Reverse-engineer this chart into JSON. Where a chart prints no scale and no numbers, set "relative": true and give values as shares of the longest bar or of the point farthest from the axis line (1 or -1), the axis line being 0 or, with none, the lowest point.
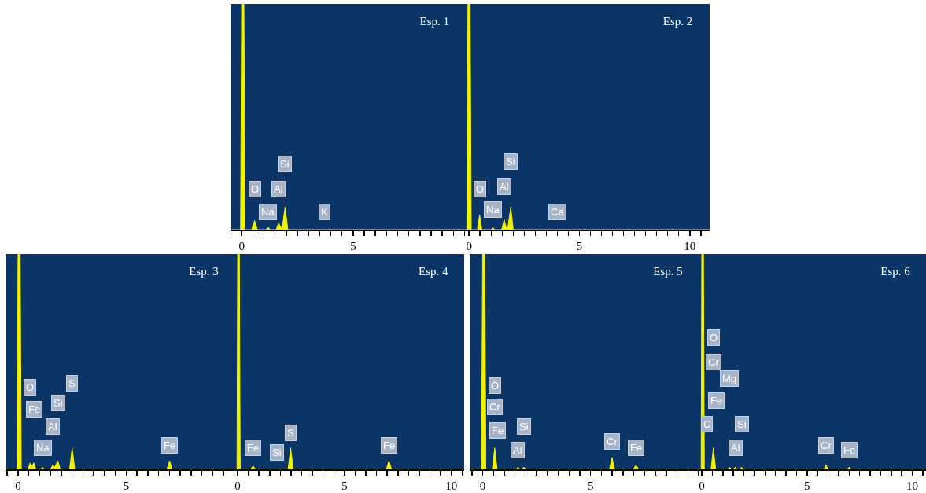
{
  "chart_data": [
    {
      "type": "area",
      "title": "Esp. 1",
      "relative": true,
      "tick_labels": "x",
      "color": "#f2f200",
      "x": [
        -0.5,
        -0.05,
        0,
        0.1,
        0.15,
        0.45,
        0.58,
        0.7,
        1.1,
        1.19,
        1.28,
        1.55,
        1.66,
        1.75,
        1.82,
        1.95,
        2.07,
        10.05
      ],
      "values": [
        0,
        0,
        1,
        1,
        0,
        0,
        0.04,
        0,
        0,
        0.01,
        0,
        0,
        0.03,
        0.01,
        0.01,
        0.1,
        0,
        0
      ],
      "xlim": [
        -0.5,
        10.05
      ],
      "xticks": [
        {
          "value": -0.5,
          "label": null
        },
        0,
        {
          "value": 0.5,
          "label": null
        },
        {
          "value": 1,
          "label": null
        },
        {
          "value": 1.5,
          "label": null
        },
        {
          "value": 2,
          "label": null
        },
        {
          "value": 2.5,
          "label": null
        },
        {
          "value": 3,
          "label": null
        },
        {
          "value": 3.5,
          "label": null
        },
        {
          "value": 4,
          "label": null
        },
        {
          "value": 4.5,
          "label": null
        },
        5,
        {
          "value": 5.5,
          "label": null
        },
        {
          "value": 6,
          "label": null
        },
        {
          "value": 6.5,
          "label": null
        },
        {
          "value": 7,
          "label": null
        },
        {
          "value": 7.5,
          "label": null
        },
        {
          "value": 8,
          "label": null
        },
        {
          "value": 8.5,
          "label": null
        },
        {
          "value": 9,
          "label": null
        },
        {
          "value": 9.5,
          "label": null
        },
        {
          "value": 10,
          "label": null
        }
      ],
      "annotations": [
        {
          "text": "O",
          "x": 0.58,
          "y": 0.18
        },
        {
          "text": "Na",
          "x": 1.19,
          "y": 0.08
        },
        {
          "text": "Al",
          "x": 1.66,
          "y": 0.18
        },
        {
          "text": "Si",
          "x": 1.95,
          "y": 0.29
        },
        {
          "text": "K",
          "x": 3.7,
          "y": 0.08
        }
      ]
    },
    {
      "type": "area",
      "title": "Esp. 2",
      "relative": true,
      "tick_labels": "x",
      "color": "#f2f200",
      "x": [
        -0.15,
        -0.1,
        -0.05,
        0.05,
        0.1,
        0.38,
        0.48,
        0.58,
        1.0,
        1.08,
        1.16,
        1.48,
        1.59,
        1.68,
        1.76,
        1.89,
        2.0,
        10.9
      ],
      "values": [
        0,
        0,
        1,
        1,
        0,
        0,
        0.065,
        0,
        0,
        0.01,
        0,
        0,
        0.045,
        0.01,
        0.01,
        0.1,
        0,
        0
      ],
      "xlim": [
        -0.15,
        10.9
      ],
      "xticks": [
        0,
        {
          "value": 0.5,
          "label": null
        },
        {
          "value": 1,
          "label": null
        },
        {
          "value": 1.5,
          "label": null
        },
        {
          "value": 2,
          "label": null
        },
        {
          "value": 2.5,
          "label": null
        },
        {
          "value": 3,
          "label": null
        },
        {
          "value": 3.5,
          "label": null
        },
        {
          "value": 4,
          "label": null
        },
        {
          "value": 4.5,
          "label": null
        },
        5,
        {
          "value": 5.5,
          "label": null
        },
        {
          "value": 6,
          "label": null
        },
        {
          "value": 6.5,
          "label": null
        },
        {
          "value": 7,
          "label": null
        },
        {
          "value": 7.5,
          "label": null
        },
        {
          "value": 8,
          "label": null
        },
        {
          "value": 8.5,
          "label": null
        },
        {
          "value": 9,
          "label": null
        },
        {
          "value": 9.5,
          "label": null
        },
        10,
        {
          "value": 10.5,
          "label": null
        }
      ],
      "annotations": [
        {
          "text": "O",
          "x": 0.48,
          "y": 0.18
        },
        {
          "text": "Na",
          "x": 1.08,
          "y": 0.09
        },
        {
          "text": "Al",
          "x": 1.59,
          "y": 0.19
        },
        {
          "text": "Si",
          "x": 1.89,
          "y": 0.3
        },
        {
          "text": "Ca",
          "x": 4.02,
          "y": 0.08
        }
      ]
    },
    {
      "type": "area",
      "title": "Esp. 3",
      "relative": true,
      "tick_labels": "x",
      "color": "#f2f200",
      "x": [
        -0.58,
        -0.05,
        0,
        0.1,
        0.15,
        0.45,
        0.56,
        0.64,
        0.73,
        0.82,
        1.05,
        1.13,
        1.21,
        1.5,
        1.6,
        1.7,
        1.84,
        1.95,
        2.38,
        2.5,
        2.62,
        6.88,
        7.0,
        7.12,
        10.0
      ],
      "values": [
        0,
        0,
        1,
        1,
        0,
        0,
        0.03,
        0.015,
        0.03,
        0,
        0,
        0.01,
        0,
        0,
        0.02,
        0.01,
        0.04,
        0,
        0,
        0.1,
        0,
        0,
        0.04,
        0,
        0
      ],
      "xlim": [
        -0.58,
        10.0
      ],
      "xticks": [
        {
          "value": -0.5,
          "label": null
        },
        0,
        {
          "value": 0.5,
          "label": null
        },
        {
          "value": 1,
          "label": null
        },
        {
          "value": 1.5,
          "label": null
        },
        {
          "value": 2,
          "label": null
        },
        {
          "value": 2.5,
          "label": null
        },
        {
          "value": 3,
          "label": null
        },
        {
          "value": 3.5,
          "label": null
        },
        {
          "value": 4,
          "label": null
        },
        {
          "value": 4.5,
          "label": null
        },
        5,
        {
          "value": 5.5,
          "label": null
        },
        {
          "value": 6,
          "label": null
        },
        {
          "value": 6.5,
          "label": null
        },
        {
          "value": 7,
          "label": null
        },
        {
          "value": 7.5,
          "label": null
        },
        {
          "value": 8,
          "label": null
        },
        {
          "value": 8.5,
          "label": null
        },
        {
          "value": 9,
          "label": null
        },
        {
          "value": 9.5,
          "label": null
        },
        {
          "value": 10,
          "label": null
        }
      ],
      "annotations": [
        {
          "text": "O",
          "x": 0.56,
          "y": 0.38
        },
        {
          "text": "Fe",
          "x": 0.73,
          "y": 0.28
        },
        {
          "text": "Na",
          "x": 1.13,
          "y": 0.1
        },
        {
          "text": "Al",
          "x": 1.6,
          "y": 0.2
        },
        {
          "text": "Si",
          "x": 1.84,
          "y": 0.31
        },
        {
          "text": "S",
          "x": 2.5,
          "y": 0.4
        },
        {
          "text": "Fe",
          "x": 7.0,
          "y": 0.11
        }
      ]
    },
    {
      "type": "area",
      "title": "Esp. 4",
      "relative": true,
      "tick_labels": "x",
      "color": "#f2f200",
      "x": [
        -0.15,
        -0.03,
        0,
        0.08,
        0.12,
        0.6,
        0.72,
        0.84,
        2.36,
        2.48,
        2.6,
        6.96,
        7.08,
        7.2,
        10.6
      ],
      "values": [
        0,
        0,
        1,
        1,
        0,
        0,
        0.015,
        0,
        0,
        0.1,
        0,
        0,
        0.04,
        0,
        0
      ],
      "xlim": [
        -0.15,
        10.6
      ],
      "xticks": [
        0,
        {
          "value": 0.5,
          "label": null
        },
        {
          "value": 1,
          "label": null
        },
        {
          "value": 1.5,
          "label": null
        },
        {
          "value": 2,
          "label": null
        },
        {
          "value": 2.5,
          "label": null
        },
        {
          "value": 3,
          "label": null
        },
        {
          "value": 3.5,
          "label": null
        },
        {
          "value": 4,
          "label": null
        },
        {
          "value": 4.5,
          "label": null
        },
        5,
        {
          "value": 5.5,
          "label": null
        },
        {
          "value": 6,
          "label": null
        },
        {
          "value": 6.5,
          "label": null
        },
        {
          "value": 7,
          "label": null
        },
        {
          "value": 7.5,
          "label": null
        },
        {
          "value": 8,
          "label": null
        },
        {
          "value": 8.5,
          "label": null
        },
        {
          "value": 9,
          "label": null
        },
        {
          "value": 9.5,
          "label": null
        },
        10,
        {
          "value": 10.5,
          "label": null
        }
      ],
      "annotations": [
        {
          "text": "Fe",
          "x": 0.72,
          "y": 0.1
        },
        {
          "text": "Si",
          "x": 1.84,
          "y": 0.08
        },
        {
          "text": "S",
          "x": 2.48,
          "y": 0.17
        },
        {
          "text": "Fe",
          "x": 7.08,
          "y": 0.11
        }
      ]
    },
    {
      "type": "area",
      "title": "Esp. 5",
      "relative": true,
      "tick_labels": "x",
      "color": "#f2f200",
      "x": [
        -0.6,
        -0.05,
        0,
        0.1,
        0.15,
        0.45,
        0.56,
        0.67,
        1.55,
        1.64,
        1.73,
        1.82,
        1.91,
        2.0,
        5.87,
        5.99,
        6.11,
        6.98,
        7.1,
        7.22,
        10.0
      ],
      "values": [
        0,
        0,
        1,
        1,
        0,
        0,
        0.1,
        0,
        0,
        0.01,
        0,
        0,
        0.01,
        0,
        0,
        0.055,
        0,
        0,
        0.02,
        0,
        0
      ],
      "xlim": [
        -0.6,
        10.0
      ],
      "xticks": [
        {
          "value": -0.5,
          "label": null
        },
        0,
        {
          "value": 0.5,
          "label": null
        },
        {
          "value": 1,
          "label": null
        },
        {
          "value": 1.5,
          "label": null
        },
        {
          "value": 2,
          "label": null
        },
        {
          "value": 2.5,
          "label": null
        },
        {
          "value": 3,
          "label": null
        },
        {
          "value": 3.5,
          "label": null
        },
        {
          "value": 4,
          "label": null
        },
        {
          "value": 4.5,
          "label": null
        },
        5,
        {
          "value": 5.5,
          "label": null
        },
        {
          "value": 6,
          "label": null
        },
        {
          "value": 6.5,
          "label": null
        },
        {
          "value": 7,
          "label": null
        },
        {
          "value": 7.5,
          "label": null
        },
        {
          "value": 8,
          "label": null
        },
        {
          "value": 8.5,
          "label": null
        },
        {
          "value": 9,
          "label": null
        },
        {
          "value": 9.5,
          "label": null
        },
        {
          "value": 10,
          "label": null
        }
      ],
      "annotations": [
        {
          "text": "O",
          "x": 0.56,
          "y": 0.39
        },
        {
          "text": "Cr",
          "x": 0.56,
          "y": 0.29
        },
        {
          "text": "Fe",
          "x": 0.7,
          "y": 0.18
        },
        {
          "text": "Al",
          "x": 1.64,
          "y": 0.09
        },
        {
          "text": "Si",
          "x": 1.91,
          "y": 0.2
        },
        {
          "text": "Cr",
          "x": 5.99,
          "y": 0.13
        },
        {
          "text": "Fe",
          "x": 7.1,
          "y": 0.1
        }
      ]
    },
    {
      "type": "area",
      "title": "Esp. 6",
      "relative": true,
      "tick_labels": "x",
      "color": "#f2f200",
      "x": [
        -0.15,
        -0.03,
        0,
        0.08,
        0.12,
        0.44,
        0.55,
        0.66,
        1.23,
        1.32,
        1.41,
        1.5,
        1.59,
        1.68,
        1.8,
        1.89,
        1.98,
        5.8,
        5.9,
        6.0,
        6.9,
        7.0,
        7.1,
        10.65
      ],
      "values": [
        0,
        0,
        1,
        1,
        0,
        0,
        0.1,
        0,
        0,
        0.01,
        0,
        0,
        0.01,
        0,
        0,
        0.01,
        0,
        0,
        0.02,
        0,
        0,
        0.01,
        0,
        0
      ],
      "xlim": [
        -0.15,
        10.65
      ],
      "xticks": [
        0,
        {
          "value": 0.5,
          "label": null
        },
        {
          "value": 1,
          "label": null
        },
        {
          "value": 1.5,
          "label": null
        },
        {
          "value": 2,
          "label": null
        },
        {
          "value": 2.5,
          "label": null
        },
        {
          "value": 3,
          "label": null
        },
        {
          "value": 3.5,
          "label": null
        },
        {
          "value": 4,
          "label": null
        },
        {
          "value": 4.5,
          "label": null
        },
        5,
        {
          "value": 5.5,
          "label": null
        },
        {
          "value": 6,
          "label": null
        },
        {
          "value": 6.5,
          "label": null
        },
        {
          "value": 7,
          "label": null
        },
        {
          "value": 7.5,
          "label": null
        },
        {
          "value": 8,
          "label": null
        },
        {
          "value": 8.5,
          "label": null
        },
        {
          "value": 9,
          "label": null
        },
        {
          "value": 9.5,
          "label": null
        },
        10,
        {
          "value": 10.5,
          "label": null
        }
      ],
      "annotations": [
        {
          "text": "O",
          "x": 0.55,
          "y": 0.61
        },
        {
          "text": "Cr",
          "x": 0.55,
          "y": 0.5
        },
        {
          "text": "Mg",
          "x": 1.32,
          "y": 0.42
        },
        {
          "text": "Fe",
          "x": 0.7,
          "y": 0.32
        },
        {
          "text": "C",
          "x": 0.25,
          "y": 0.21
        },
        {
          "text": "Si",
          "x": 1.89,
          "y": 0.21
        },
        {
          "text": "Al",
          "x": 1.59,
          "y": 0.1
        },
        {
          "text": "Cr",
          "x": 5.9,
          "y": 0.11
        },
        {
          "text": "Fe",
          "x": 7.0,
          "y": 0.09
        }
      ]
    }
  ]
}
